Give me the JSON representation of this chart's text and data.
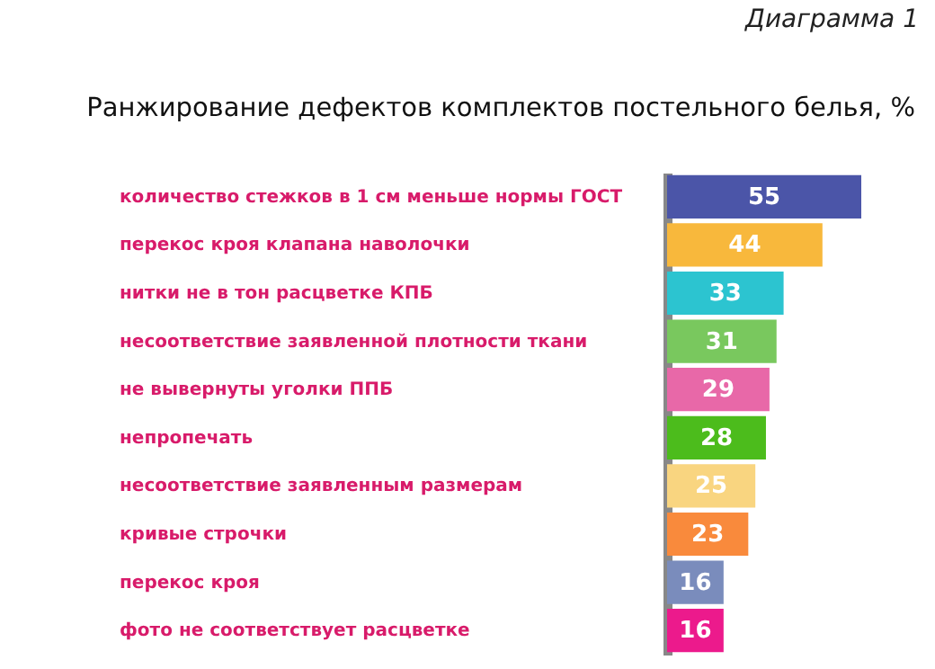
{
  "chart_data": {
    "type": "bar",
    "orientation": "horizontal",
    "title": "Ранжирование дефектов комплектов постельного белья, %",
    "annotations": [
      "Диаграмма 1"
    ],
    "categories": [
      "количество стежков в 1 см меньше нормы ГОСТ",
      "перекос кроя клапана наволочки",
      "нитки не в тон расцветке КПБ",
      "несоответствие заявленной плотности ткани",
      "не вывернуты уголки ППБ",
      "непропечать",
      "несоответствие заявленным размерам",
      "кривые строчки",
      "перекос кроя",
      "фото не соответствует расцветке"
    ],
    "values": [
      55,
      44,
      33,
      31,
      29,
      28,
      25,
      23,
      16,
      16
    ],
    "colors": [
      "#4b55a8",
      "#f8b83c",
      "#2cc4d0",
      "#79c85e",
      "#e868a8",
      "#4cbc1c",
      "#f9d580",
      "#f98a3c",
      "#7a8cbc",
      "#ec1a8c"
    ],
    "data_labels": true
  }
}
